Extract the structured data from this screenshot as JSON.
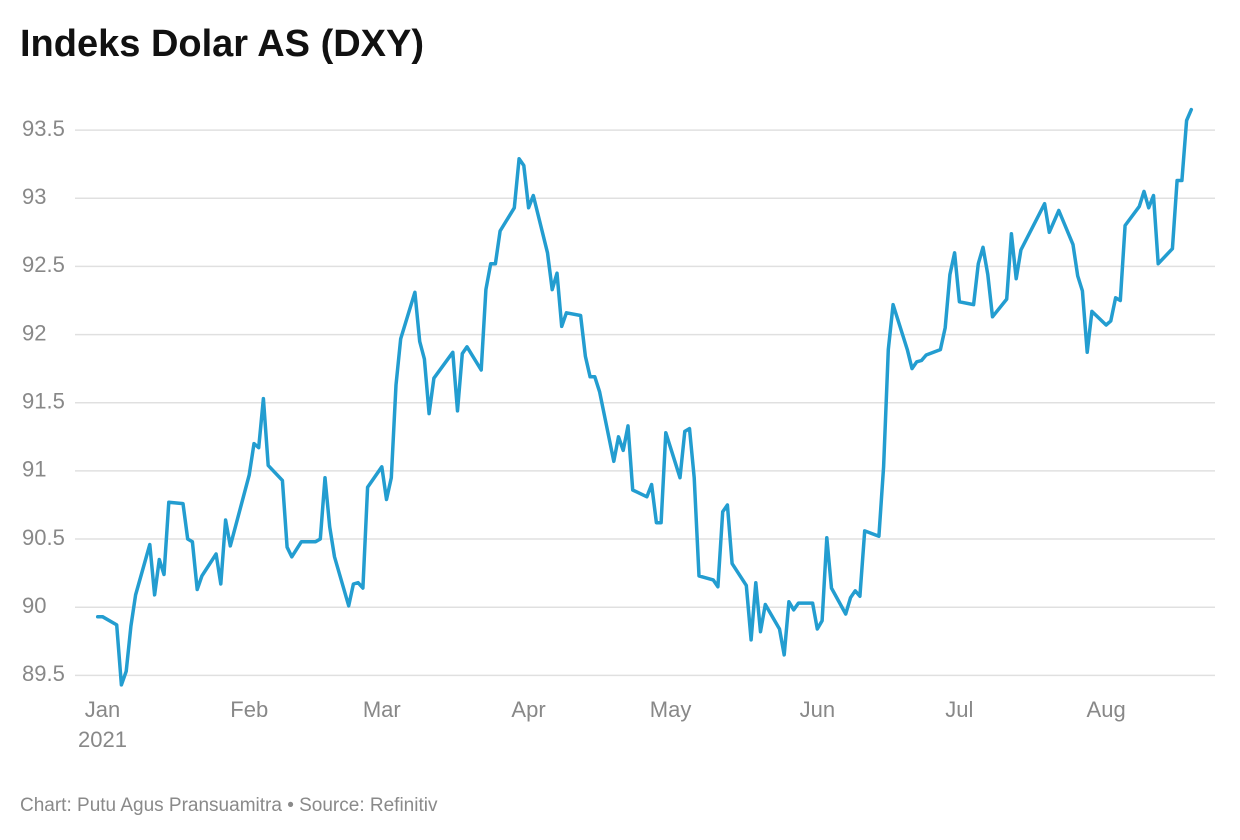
{
  "chart_data": {
    "type": "line",
    "title": "Indeks Dolar AS (DXY)",
    "source": "Chart: Putu Agus Pransuamitra • Source: Refinitiv",
    "x_year": "2021",
    "x": [
      0,
      1,
      4,
      5,
      6,
      7,
      8,
      11,
      12,
      13,
      14,
      15,
      18,
      19,
      20,
      21,
      22,
      25,
      26,
      27,
      28,
      32,
      33,
      34,
      35,
      36,
      39,
      40,
      41,
      43,
      46,
      47,
      48,
      49,
      50,
      53,
      54,
      55,
      56,
      57,
      60,
      61,
      62,
      63,
      64,
      67,
      68,
      69,
      70,
      71,
      75,
      76,
      77,
      78,
      81,
      82,
      83,
      84,
      85,
      88,
      89,
      90,
      91,
      92,
      95,
      96,
      97,
      98,
      99,
      102,
      103,
      104,
      105,
      106,
      109,
      110,
      111,
      112,
      113,
      116,
      117,
      118,
      119,
      120,
      123,
      124,
      125,
      126,
      127,
      130,
      131,
      132,
      133,
      134,
      137,
      138,
      139,
      140,
      141,
      144,
      145,
      146,
      147,
      148,
      151,
      152,
      153,
      154,
      155,
      158,
      159,
      160,
      161,
      162,
      165,
      166,
      167,
      168,
      171,
      172,
      173,
      174,
      175,
      178,
      179,
      180,
      181,
      182,
      185,
      186,
      187,
      188,
      189,
      192,
      193,
      194,
      195,
      200,
      201,
      203,
      206,
      207,
      208,
      209,
      210,
      213,
      214,
      215,
      216,
      217,
      220,
      221,
      222,
      223,
      224,
      227,
      228,
      229,
      230,
      231
    ],
    "series": [
      {
        "name": "DXY",
        "color": "#239dd0",
        "values": [
          89.93,
          89.93,
          89.87,
          89.43,
          89.53,
          89.86,
          90.09,
          90.46,
          90.09,
          90.35,
          90.24,
          90.77,
          90.76,
          90.5,
          90.48,
          90.13,
          90.23,
          90.39,
          90.17,
          90.64,
          90.45,
          90.97,
          91.2,
          91.17,
          91.53,
          91.04,
          90.93,
          90.44,
          90.37,
          90.48,
          90.48,
          90.5,
          90.95,
          90.59,
          90.37,
          90.01,
          90.17,
          90.18,
          90.14,
          90.88,
          91.03,
          90.79,
          90.95,
          91.63,
          91.97,
          92.31,
          91.95,
          91.82,
          91.42,
          91.68,
          91.87,
          91.44,
          91.86,
          91.91,
          91.74,
          92.33,
          92.52,
          92.52,
          92.76,
          92.93,
          93.29,
          93.24,
          92.93,
          93.02,
          92.6,
          92.33,
          92.45,
          92.06,
          92.16,
          92.14,
          91.84,
          91.69,
          91.69,
          91.58,
          91.07,
          91.25,
          91.15,
          91.33,
          90.86,
          90.81,
          90.9,
          90.62,
          90.62,
          91.28,
          90.95,
          91.29,
          91.31,
          90.95,
          90.23,
          90.2,
          90.15,
          90.7,
          90.75,
          90.32,
          90.16,
          89.76,
          90.18,
          89.82,
          90.02,
          89.84,
          89.65,
          90.04,
          89.98,
          90.03,
          90.03,
          89.84,
          89.9,
          90.51,
          90.14,
          89.95,
          90.07,
          90.12,
          90.08,
          90.56,
          90.52,
          91.03,
          91.89,
          92.22,
          91.89,
          91.75,
          91.8,
          91.81,
          91.85,
          91.89,
          92.05,
          92.44,
          92.6,
          92.24,
          92.22,
          92.52,
          92.64,
          92.44,
          92.13,
          92.26,
          92.74,
          92.41,
          92.62,
          92.96,
          92.75,
          92.91,
          92.66,
          92.43,
          92.32,
          91.87,
          92.17,
          92.07,
          92.1,
          92.27,
          92.25,
          92.8,
          92.94,
          93.05,
          92.93,
          93.02,
          92.52,
          92.63,
          93.13,
          93.13,
          93.57,
          93.65
        ]
      }
    ],
    "xlim": [
      -16,
      236
    ],
    "xticks": [
      {
        "value": 1,
        "label": "Jan"
      },
      {
        "value": 32,
        "label": "Feb"
      },
      {
        "value": 60,
        "label": "Mar"
      },
      {
        "value": 91,
        "label": "Apr"
      },
      {
        "value": 121,
        "label": "May"
      },
      {
        "value": 152,
        "label": "Jun"
      },
      {
        "value": 182,
        "label": "Jul"
      },
      {
        "value": 213,
        "label": "Aug"
      }
    ],
    "ylim": [
      89.4,
      93.75
    ],
    "yticks": [
      89.5,
      90,
      90.5,
      91,
      91.5,
      92,
      92.5,
      93,
      93.5
    ],
    "grid": true
  }
}
